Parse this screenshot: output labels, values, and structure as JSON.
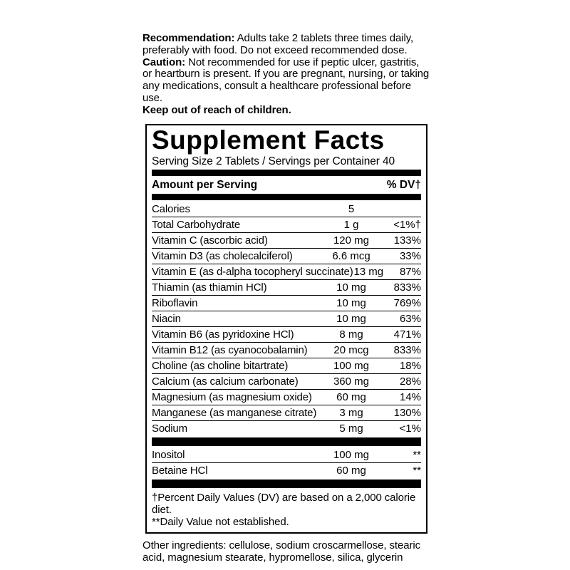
{
  "page": {
    "background_color": "#ffffff",
    "text_color": "#000000",
    "divider_color": "#000000"
  },
  "usage": {
    "recommendation_label": "Recommendation:",
    "recommendation_text": " Adults take 2 tablets three times daily, preferably with food. Do not exceed recommended dose.",
    "caution_label": "Caution:",
    "caution_text": " Not recommended for use if peptic ulcer, gastritis, or heartburn is present. If you are pregnant, nursing, or taking any medications, consult a healthcare professional before use.",
    "warning": "Keep out of reach of children."
  },
  "panel": {
    "title": "Supplement Facts",
    "serving_line": "Serving Size 2 Tablets / Servings per Container 40",
    "header": {
      "amount": "Amount per Serving",
      "dv": "% DV†"
    },
    "rows": [
      {
        "name": "Calories",
        "amount": "5",
        "dv": ""
      },
      {
        "name": "Total Carbohydrate",
        "amount": "1 g",
        "dv": "<1%†"
      },
      {
        "name": "Vitamin C (ascorbic acid)",
        "amount": "120 mg",
        "dv": "133%"
      },
      {
        "name": "Vitamin D3 (as cholecalciferol)",
        "amount": "6.6 mcg",
        "dv": "33%"
      },
      {
        "name": "Vitamin E (as d-alpha tocopheryl succinate)",
        "amount": "13 mg",
        "dv": "87%"
      },
      {
        "name": "Thiamin (as thiamin HCl)",
        "amount": "10 mg",
        "dv": "833%"
      },
      {
        "name": "Riboflavin",
        "amount": "10 mg",
        "dv": "769%"
      },
      {
        "name": "Niacin",
        "amount": "10 mg",
        "dv": "63%"
      },
      {
        "name": "Vitamin B6 (as pyridoxine HCl)",
        "amount": "8 mg",
        "dv": "471%"
      },
      {
        "name": "Vitamin B12 (as cyanocobalamin)",
        "amount": "20 mcg",
        "dv": "833%"
      },
      {
        "name": "Choline (as choline bitartrate)",
        "amount": "100 mg",
        "dv": "18%"
      },
      {
        "name": "Calcium (as calcium carbonate)",
        "amount": "360 mg",
        "dv": "28%"
      },
      {
        "name": "Magnesium (as magnesium oxide)",
        "amount": "60 mg",
        "dv": "14%"
      },
      {
        "name": "Manganese (as manganese citrate)",
        "amount": "3 mg",
        "dv": "130%"
      },
      {
        "name": "Sodium",
        "amount": "5 mg",
        "dv": "<1%"
      }
    ],
    "extra_rows": [
      {
        "name": "Inositol",
        "amount": "100 mg",
        "dv": "**"
      },
      {
        "name": "Betaine HCl",
        "amount": "60 mg",
        "dv": "**"
      }
    ],
    "footnotes": [
      "†Percent Daily Values (DV) are based on a 2,000 calorie diet.",
      "**Daily Value not established."
    ]
  },
  "other_ingredients": "Other ingredients: cellulose, sodium croscarmellose, stearic acid, magnesium stearate, hypromellose, silica, glycerin"
}
